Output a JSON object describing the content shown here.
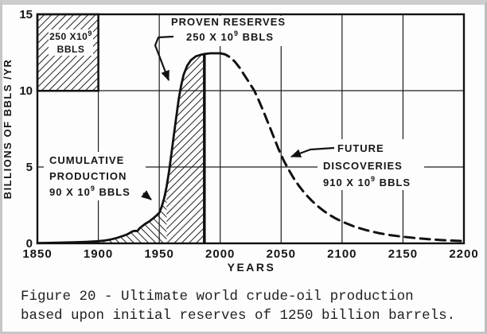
{
  "figure": {
    "caption_line1": "Figure 20 - Ultimate world crude-oil production",
    "caption_line2": "based upon initial reserves of 1250 billion barrels."
  },
  "axes": {
    "ylabel": "BILLIONS OF BBLS /YR",
    "xlabel": "YEARS"
  },
  "annotations": {
    "legend_box": {
      "line1_pre": "250 X10",
      "line1_sup": "9",
      "line2": "BBLS"
    },
    "proven_reserves": {
      "line1": "PROVEN RESERVES",
      "line2_pre": "250 X 10",
      "line2_sup": "9",
      "line2_post": " BBLS"
    },
    "cumulative_production": {
      "line1": "CUMULATIVE",
      "line2": "PRODUCTION",
      "line3_pre": "90 X 10",
      "line3_sup": "9",
      "line3_post": " BBLS"
    },
    "future_discoveries": {
      "line1": "FUTURE",
      "line2": "DISCOVERIES",
      "line3_pre": "910 X 10",
      "line3_sup": "9",
      "line3_post": " BBLS"
    }
  },
  "chart_data": {
    "type": "line",
    "title": "Ultimate world crude-oil production based upon initial reserves of 1250 billion barrels",
    "xlabel": "YEARS",
    "ylabel": "BILLIONS OF BBLS /YR",
    "xlim": [
      1850,
      2200
    ],
    "ylim": [
      0,
      15
    ],
    "x_ticks": [
      1850,
      1900,
      1950,
      2000,
      2050,
      2100,
      2150,
      2200
    ],
    "y_ticks": [
      0,
      5,
      10,
      15
    ],
    "grid": true,
    "legend_position": "top-left reference box = 50 yr x 5 Gbbl/yr = 250x10^9 BBLS",
    "series": [
      {
        "name": "world crude-oil production (observed/solid portion)",
        "style": "solid",
        "points": [
          [
            1850,
            0.02
          ],
          [
            1860,
            0.03
          ],
          [
            1870,
            0.05
          ],
          [
            1880,
            0.07
          ],
          [
            1890,
            0.1
          ],
          [
            1900,
            0.14
          ],
          [
            1905,
            0.18
          ],
          [
            1910,
            0.25
          ],
          [
            1915,
            0.35
          ],
          [
            1920,
            0.48
          ],
          [
            1924,
            0.6
          ],
          [
            1928,
            0.78
          ],
          [
            1930,
            0.82
          ],
          [
            1932,
            0.8
          ],
          [
            1934,
            1.0
          ],
          [
            1938,
            1.25
          ],
          [
            1942,
            1.45
          ],
          [
            1946,
            1.7
          ],
          [
            1950,
            2.0
          ],
          [
            1952,
            2.4
          ],
          [
            1954,
            2.95
          ],
          [
            1956,
            3.7
          ],
          [
            1958,
            4.7
          ],
          [
            1960,
            5.9
          ],
          [
            1962,
            7.1
          ],
          [
            1964,
            8.3
          ],
          [
            1966,
            9.45
          ],
          [
            1968,
            10.35
          ],
          [
            1970,
            11.05
          ],
          [
            1973,
            11.65
          ],
          [
            1976,
            12.0
          ],
          [
            1980,
            12.25
          ],
          [
            1984,
            12.35
          ],
          [
            1987,
            12.4
          ],
          [
            1992,
            12.45
          ],
          [
            2000,
            12.45
          ]
        ]
      },
      {
        "name": "world crude-oil production (projected/dashed portion)",
        "style": "dashed",
        "points": [
          [
            2000,
            12.45
          ],
          [
            2004,
            12.38
          ],
          [
            2008,
            12.2
          ],
          [
            2012,
            11.9
          ],
          [
            2016,
            11.5
          ],
          [
            2020,
            11.0
          ],
          [
            2024,
            10.5
          ],
          [
            2028,
            10.0
          ],
          [
            2032,
            9.3
          ],
          [
            2036,
            8.55
          ],
          [
            2040,
            7.75
          ],
          [
            2044,
            6.95
          ],
          [
            2048,
            6.15
          ],
          [
            2052,
            5.45
          ],
          [
            2056,
            4.85
          ],
          [
            2060,
            4.3
          ],
          [
            2065,
            3.72
          ],
          [
            2070,
            3.22
          ],
          [
            2075,
            2.8
          ],
          [
            2080,
            2.44
          ],
          [
            2085,
            2.12
          ],
          [
            2090,
            1.85
          ],
          [
            2095,
            1.62
          ],
          [
            2100,
            1.42
          ],
          [
            2110,
            1.1
          ],
          [
            2120,
            0.86
          ],
          [
            2130,
            0.67
          ],
          [
            2140,
            0.53
          ],
          [
            2150,
            0.43
          ],
          [
            2160,
            0.35
          ],
          [
            2170,
            0.28
          ],
          [
            2180,
            0.22
          ],
          [
            2190,
            0.18
          ],
          [
            2200,
            0.15
          ]
        ]
      }
    ],
    "areas": [
      {
        "id": "cumulative-production",
        "label": "CUMULATIVE PRODUCTION 90 X 10^9 BBLS",
        "from": 1850,
        "to": 1956,
        "hatch": "down"
      },
      {
        "id": "proven-reserves",
        "label": "PROVEN RESERVES 250 X 10^9 BBLS",
        "from": 1956,
        "to": 1987,
        "hatch": "up"
      }
    ],
    "unshaded_area_label": "FUTURE DISCOVERIES 910 X 10^9 BBLS (under dashed curve beyond vertical boundary)",
    "reserve_boundary_line": {
      "year": 1987,
      "top_value": 12.4
    },
    "legend_box": {
      "x_from": 1850,
      "x_to": 1900,
      "y_from": 10,
      "y_to": 15,
      "label": "250 X10^9 BBLS",
      "hatch": "up"
    },
    "peak": {
      "year": 2000,
      "value": 12.45
    }
  }
}
